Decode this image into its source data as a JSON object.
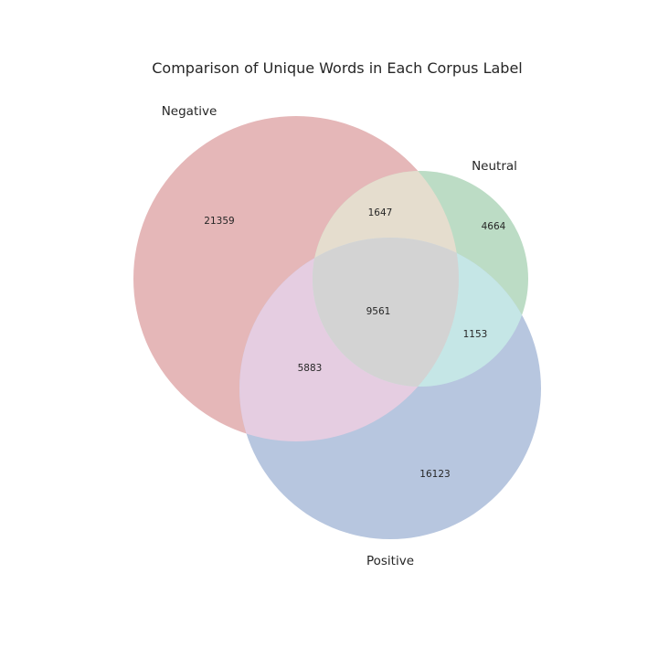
{
  "title": "Comparison of Unique Words in Each Corpus Label",
  "sets": {
    "negative": {
      "label": "Negative",
      "color": "#e5b7b8"
    },
    "neutral": {
      "label": "Neutral",
      "color": "#bcdcc5"
    },
    "positive": {
      "label": "Positive",
      "color": "#b7c6df"
    }
  },
  "regions": {
    "negative_only": "21359",
    "neutral_only": "4664",
    "positive_only": "16123",
    "negative_neutral": "1647",
    "negative_positive": "5883",
    "neutral_positive": "1153",
    "all_three": "9561"
  },
  "region_colors": {
    "negative_neutral": "#e5ddce",
    "negative_positive": "#e5cde1",
    "neutral_positive": "#c5e6e6",
    "all_three": "#d3d3d3"
  }
}
